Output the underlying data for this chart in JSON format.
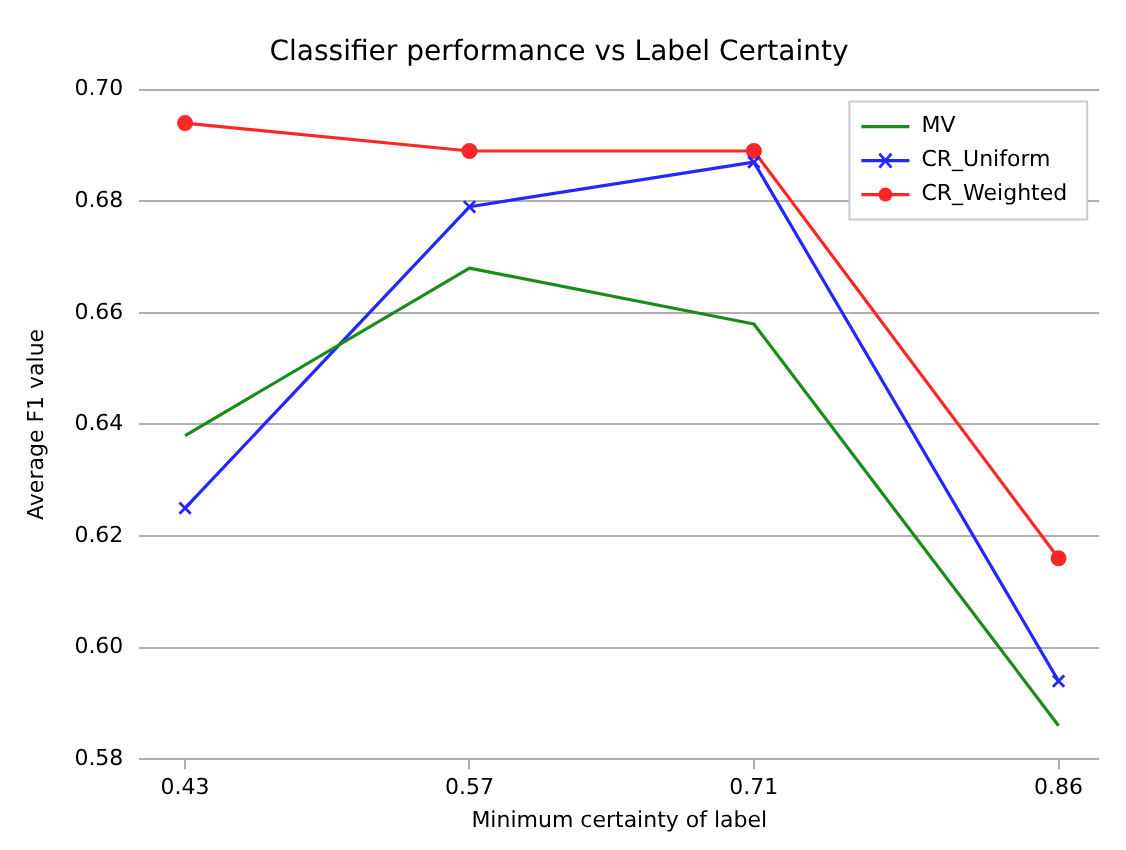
{
  "chart_data": {
    "type": "line",
    "title": "Classifier performance vs Label Certainty",
    "xlabel": "Minimum certainty of label",
    "ylabel": "Average F1 value",
    "x": [
      0.43,
      0.57,
      0.71,
      0.86
    ],
    "series": [
      {
        "name": "MV",
        "color": "#1a8c1a",
        "marker": "none",
        "values": [
          0.638,
          0.668,
          0.658,
          0.586
        ]
      },
      {
        "name": "CR_Uniform",
        "color": "#2626ff",
        "marker": "cross",
        "values": [
          0.625,
          0.679,
          0.687,
          0.594
        ]
      },
      {
        "name": "CR_Weighted",
        "color": "#ff2626",
        "marker": "circle",
        "values": [
          0.694,
          0.689,
          0.689,
          0.616
        ]
      }
    ],
    "xlim": [
      0.4075,
      0.88
    ],
    "xticks": [
      0.43,
      0.57,
      0.71,
      0.86
    ],
    "ylim": [
      0.58,
      0.7
    ],
    "yticks": [
      0.58,
      {
        "value": 0.6,
        "label": "0.60"
      },
      0.62,
      0.64,
      0.66,
      0.68,
      {
        "value": 0.7,
        "label": "0.70"
      }
    ],
    "grid": "y",
    "legend": "top right"
  }
}
